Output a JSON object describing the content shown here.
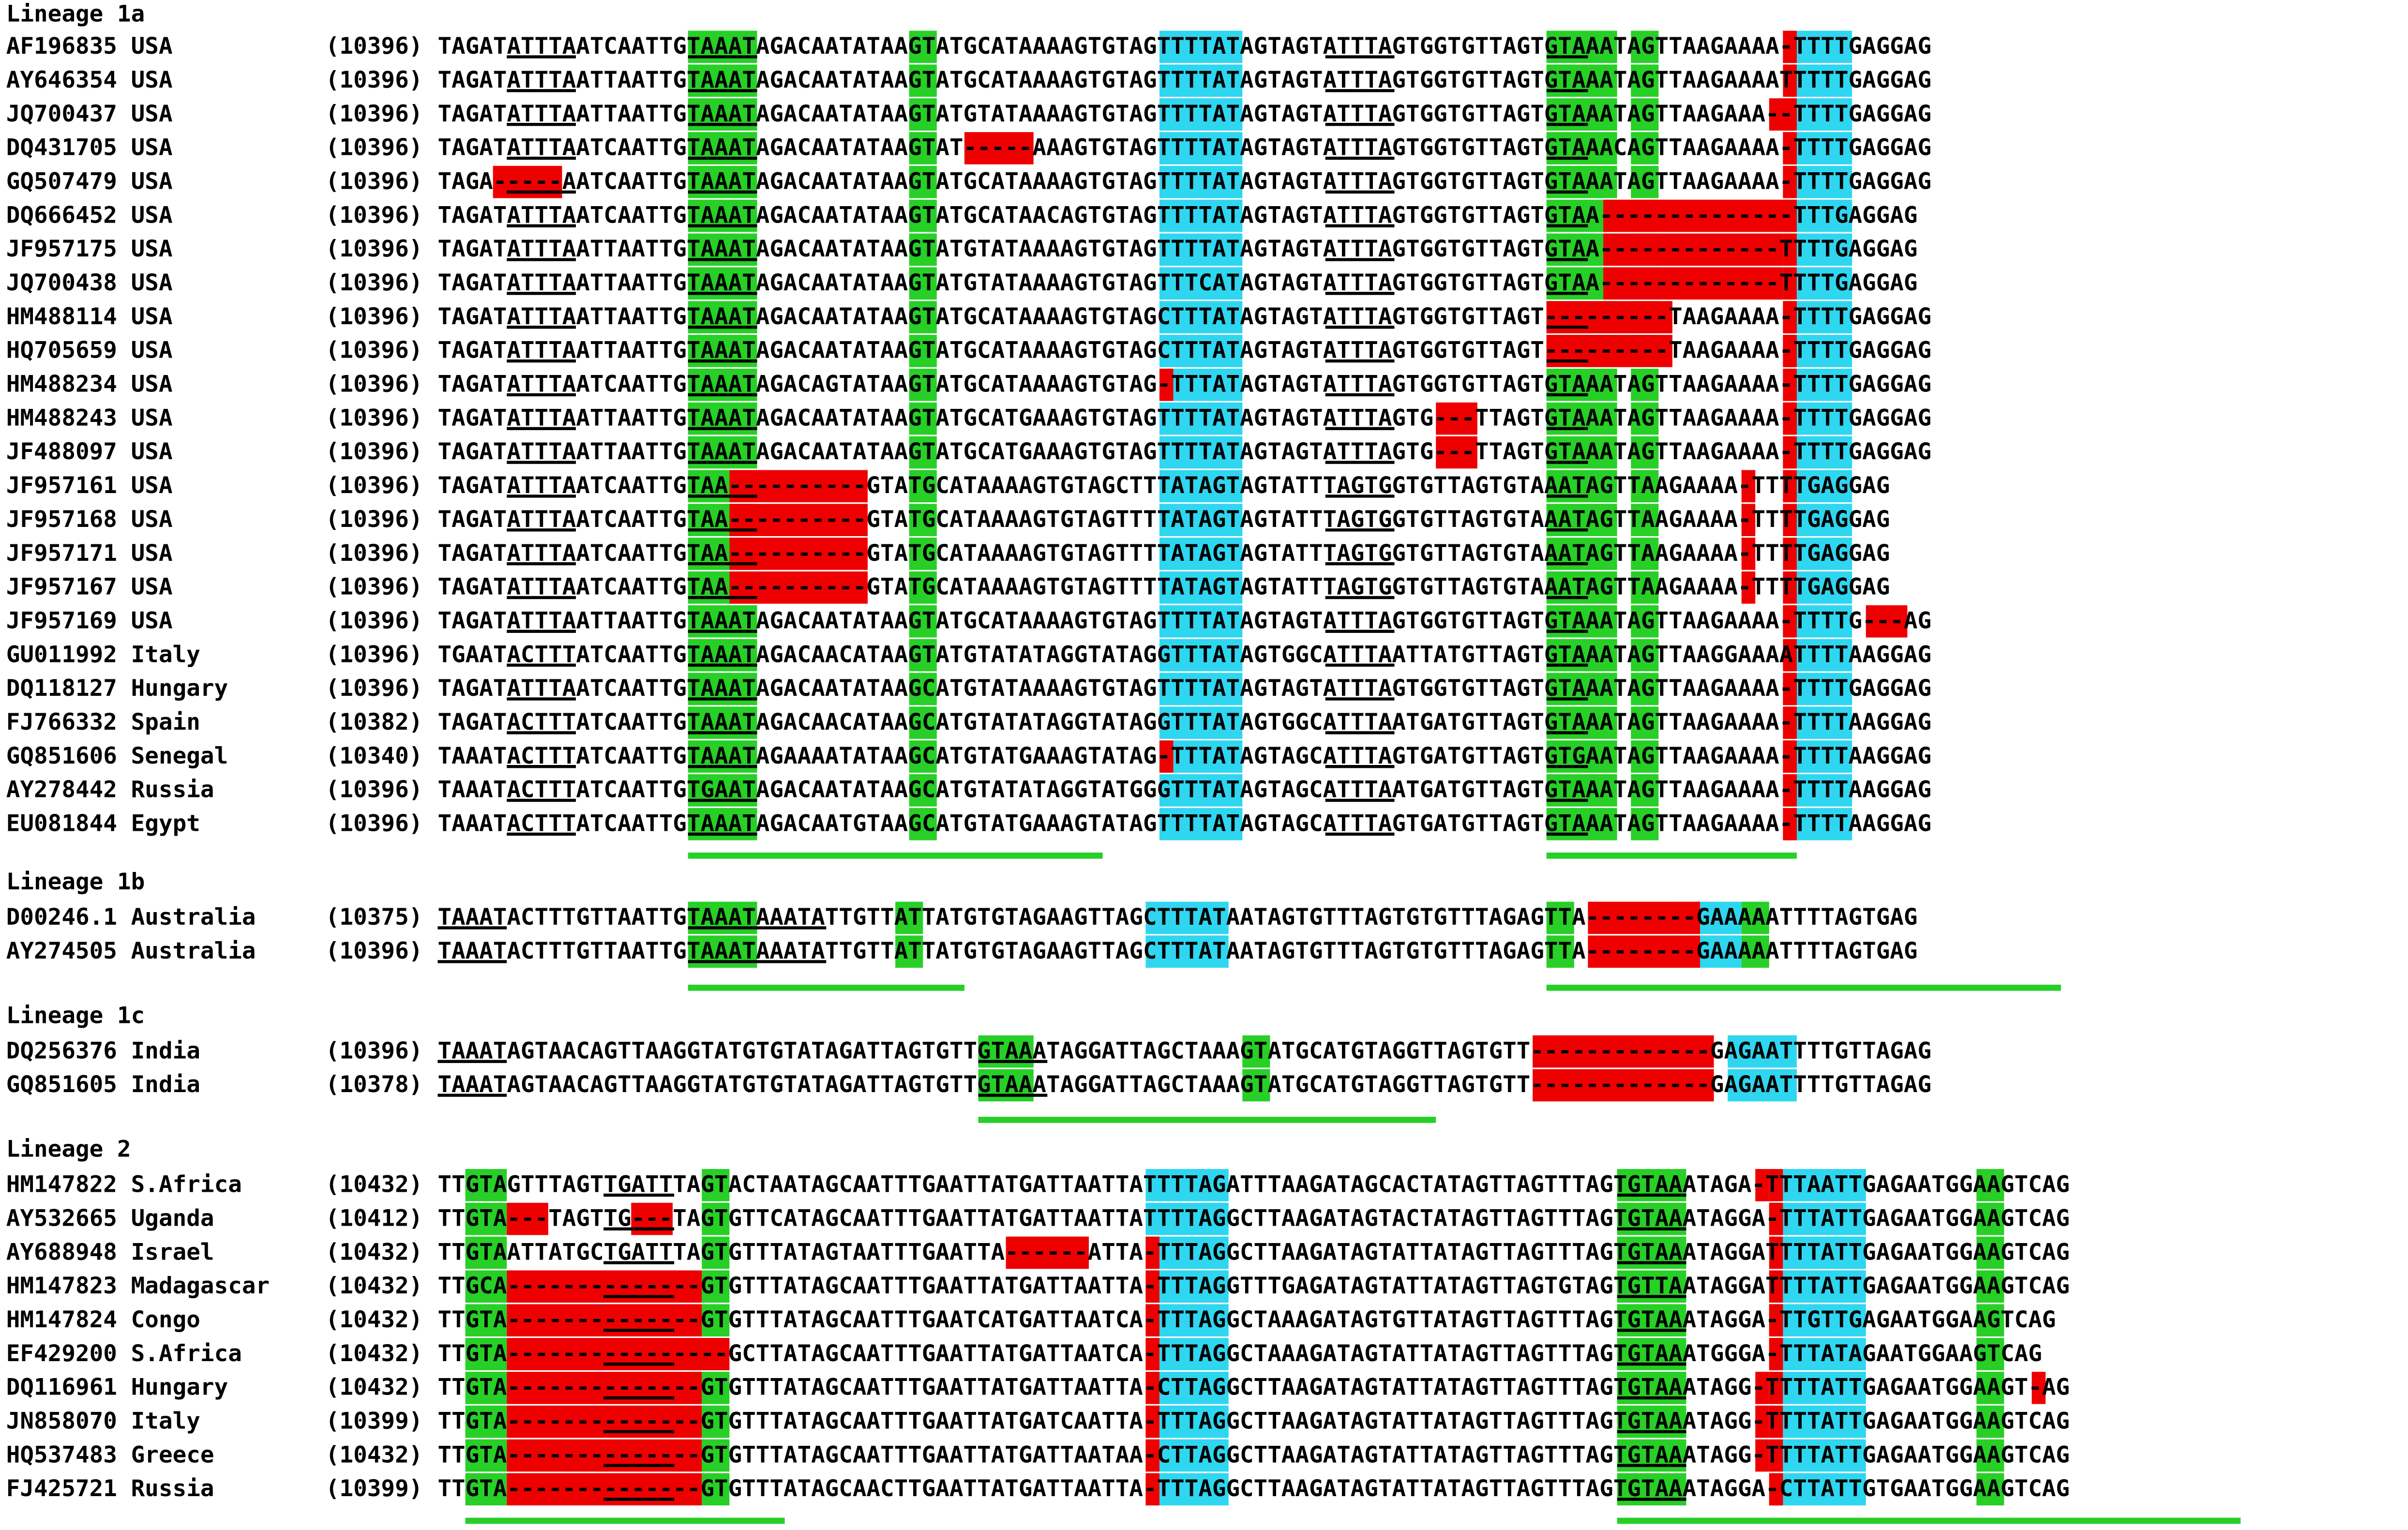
{
  "colors": {
    "conserved_motif": "#27cf27",
    "tttta_motif": "#2fd6f0",
    "deletion": "#ee0000",
    "insertion": "#f6ee12"
  },
  "lineages": [
    {
      "title": "Lineage 1a",
      "sequences": [
        {
          "id": "AF196835 USA",
          "pos": "(10396)",
          "seq": "TAGATATTTAATCAATTGTAAATAGACAATATAAGTATGCATAAAAGTGTAGTTTTATAGTAGTATTTAGTGGTGTTAGTGTAAATAGTTAAGAAAA-TTTTGAGGAG"
        },
        {
          "id": "AY646354 USA",
          "pos": "(10396)",
          "seq": "TAGATATTTAATTAATTGTAAATAGACAATATAAGTATGCATAAAAGTGTAGTTTTATAGTAGTATTTAGTGGTGTTAGTGTAAATAGTTAAGAAAATTTTTGAGGAG"
        },
        {
          "id": "JQ700437 USA",
          "pos": "(10396)",
          "seq": "TAGATATTTAATTAATTGTAAATAGACAATATAAGTATGTATAAAAGTGTAGTTTTATAGTAGTATTTAGTGGTGTTAGTGTAAATAGTTAAGAAA--TTTTGAGGAG"
        },
        {
          "id": "DQ431705 USA",
          "pos": "(10396)",
          "seq": "TAGATATTTAATCAATTGTAAATAGACAATATAAGTAT-----AAAGTGTAGTTTTATAGTAGTATTTAGTGGTGTTAGTGTAAACAGTTAAGAAAA-TTTTGAGGAG"
        },
        {
          "id": "GQ507479 USA",
          "pos": "(10396)",
          "seq": "TAGA-----AATCAATTGTAAATAGACAATATAAGTATGCATAAAAGTGTAGTTTTATAGTAGTATTTAGTGGTGTTAGTGTAAATAGTTAAGAAAA-TTTTGAGGAG"
        },
        {
          "id": "DQ666452 USA",
          "pos": "(10396)",
          "seq": "TAGATATTTAATCAATTGTAAATAGACAATATAAGTATGCATAACAGTGTAGTTTTATAGTAGTATTTAGTGGTGTTAGTGTAA--------------TTTGAGGAG"
        },
        {
          "id": "JF957175 USA",
          "pos": "(10396)",
          "seq": "TAGATATTTAATTAATTGTAAATAGACAATATAAGTATGTATAAAAGTGTAGTTTTATAGTAGTATTTAGTGGTGTTAGTGTAA-------------TTTTGAGGAG"
        },
        {
          "id": "JQ700438 USA",
          "pos": "(10396)",
          "seq": "TAGATATTTAATTAATTGTAAATAGACAATATAAGTATGTATAAAAGTGTAGTTTCATAGTAGTATTTAGTGGTGTTAGTGTAA-------------TTTTGAGGAG"
        },
        {
          "id": "HM488114 USA",
          "pos": "(10396)",
          "seq": "TAGATATTTAATTAATTGTAAATAGACAATATAAGTATGCATAAAAGTGTAGCTTTATAGTAGTATTTAGTGGTGTTAGT---------TAAGAAAA-TTTTGAGGAG"
        },
        {
          "id": "HQ705659 USA",
          "pos": "(10396)",
          "seq": "TAGATATTTAATTAATTGTAAATAGACAATATAAGTATGCATAAAAGTGTAGCTTTATAGTAGTATTTAGTGGTGTTAGT---------TAAGAAAA-TTTTGAGGAG"
        },
        {
          "id": "HM488234 USA",
          "pos": "(10396)",
          "seq": "TAGATATTTAATCAATTGTAAATAGACAGTATAAGTATGCATAAAAGTGTAG-TTTATAGTAGTATTTAGTGGTGTTAGTGTAAATAGTTAAGAAAA-TTTTGAGGAG"
        },
        {
          "id": "HM488243 USA",
          "pos": "(10396)",
          "seq": "TAGATATTTAATTAATTGTAAATAGACAATATAAGTATGCATGAAAGTGTAGTTTTATAGTAGTATTTAGTG---TTAGTGTAAATAGTTAAGAAAA-TTTTGAGGAG"
        },
        {
          "id": "JF488097 USA",
          "pos": "(10396)",
          "seq": "TAGATATTTAATTAATTGTAAATAGACAATATAAGTATGCATGAAAGTGTAGTTTTATAGTAGTATTTAGTG---TTAGTGTAAATAGTTAAGAAAA-TTTTGAGGAG"
        },
        {
          "id": "JF957161 USA",
          "pos": "(10396)",
          "seq": "TAGATATTTAATCAATTGTAA----------GTATGCATAAAAGTGTAGCTTTATAGTAGTATTTAGTGGTGTTAGTGTAAATAGTTAAGAAAA-TTTTGAGGAG"
        },
        {
          "id": "JF957168 USA",
          "pos": "(10396)",
          "seq": "TAGATATTTAATCAATTGTAA----------GTATGCATAAAAGTGTAGTTTTATAGTAGTATTTAGTGGTGTTAGTGTAAATAGTTAAGAAAA-TTTTGAGGAG"
        },
        {
          "id": "JF957171 USA",
          "pos": "(10396)",
          "seq": "TAGATATTTAATCAATTGTAA----------GTATGCATAAAAGTGTAGTTTTATAGTAGTATTTAGTGGTGTTAGTGTAAATAGTTAAGAAAA-TTTTGAGGAG"
        },
        {
          "id": "JF957167 USA",
          "pos": "(10396)",
          "seq": "TAGATATTTAATCAATTGTAA----------GTATGCATAAAAGTGTAGTTTTATAGTAGTATTTAGTGGTGTTAGTGTAAATAGTTAAGAAAA-TTTTGAGGAG"
        },
        {
          "id": "JF957169 USA",
          "pos": "(10396)",
          "seq": "TAGATATTTAATTAATTGTAAATAGACAATATAAGTATGCATAAAAGTGTAGTTTTATAGTAGTATTTAGTGGTGTTAGTGTAAATAGTTAAGAAAA-TTTTG---AG"
        },
        {
          "id": "GU011992 Italy",
          "pos": "(10396)",
          "seq": "TGAATACTTTATCAATTGTAAATAGACAACATAAGTATGTATATAGGTATAGGTTTATAGTGGCATTTAATTATGTTAGTGTAAATAGTTAAGGAAAATTTTAAGGAG"
        },
        {
          "id": "DQ118127 Hungary",
          "pos": "(10396)",
          "seq": "TAGATATTTAATCAATTGTAAATAGACAATATAAGCATGTATAAAAGTGTAGTTTTATAGTAGTATTTAGTGGTGTTAGTGTAAATAGTTAAGAAAA-TTTTGAGGAG"
        },
        {
          "id": "FJ766332 Spain",
          "pos": "(10382)",
          "seq": "TAGATACTTTATCAATTGTAAATAGACAACATAAGCATGTATATAGGTATAGGTTTATAGTGGCATTTAATGATGTTAGTGTAAATAGTTAAGAAAA-TTTTAAGGAG"
        },
        {
          "id": "GQ851606 Senegal",
          "pos": "(10340)",
          "seq": "TAAATACTTTATCAATTGTAAATAGAAAATATAAGCATGTATGAAAGTATAG-TTTATAGTAGCATTTAGTGATGTTAGTGTGAATAGTTAAGAAAA-TTTTAAGGAG"
        },
        {
          "id": "AY278442 Russia",
          "pos": "(10396)",
          "seq": "TAAATACTTTATCAATTGTGAATAGACAATATAAGCATGTATATAGGTATGGGTTTATAGTAGCATTTAATGATGTTAGTGTAAATAGTTAAGAAAA-TTTTAAGGAG"
        },
        {
          "id": "EU081844 Egypt",
          "pos": "(10396)",
          "seq": "TAAATACTTTATCAATTGTAAATAGACAATGTAAGCATGTATGAAAGTATAGTTTTATAGTAGCATTTAGTGATGTTAGTGTAAATAGTTAAGAAAA-TTTTAAGGAG"
        }
      ]
    },
    {
      "title": "Lineage 1b",
      "sequences": [
        {
          "id": "D00246.1 Australia",
          "pos": "(10375)",
          "seq": "TAAATACTTTGTTAATTGTAAATAAATATTGTTATTATGTGTAGAAGTTAGCTTTATAATAGTGTTTAGTGTGTTTAGAGTTA--------GAAAAATTTTAGTGAG"
        },
        {
          "id": "AY274505 Australia",
          "pos": "(10396)",
          "seq": "TAAATACTTTGTTAATTGTAAATAAATATTGTTATTATGTGTAGAAGTTAGCTTTATAATAGTGTTTAGTGTGTTTAGAGTTA--------GAAAAATTTTAGTGAG"
        }
      ]
    },
    {
      "title": "Lineage 1c",
      "sequences": [
        {
          "id": "DQ256376 India",
          "pos": "(10396)",
          "seq": "TAAATAGTAACAGTTAAGGTATGTGTATAGATTAGTGTTGTAAATAGGATTAGCTAAAGTATGCATGTAGGTTAGTGTT-------------GAGAATTTTGTTAGAG"
        },
        {
          "id": "GQ851605 India",
          "pos": "(10378)",
          "seq": "TAAATAGTAACAGTTAAGGTATGTGTATAGATTAGTGTTGTAAATAGGATTAGCTAAAGTATGCATGTAGGTTAGTGTT-------------GAGAATTTTGTTAGAG"
        }
      ]
    },
    {
      "title": "Lineage 2",
      "sequences": [
        {
          "id": "HM147822 S.Africa",
          "pos": "(10432)",
          "seq": "TTGTAGTTTAGTTGATTTAGTACTAATAGCAATTTGAATTATGATTAATTATTTTAGATTTAAGATAGCACTATAGTTAGTTTAGTGTAAATAGA-TTTAATTGAGAATGGAAGTCAG"
        },
        {
          "id": "AY532665 Uganda",
          "pos": "(10412)",
          "seq": "TTGTA---TAGTTG---TAGTGTTCATAGCAATTTGAATTATGATTAATTATTTTAGGCTTAAGATAGTACTATAGTTAGTTTAGTGTAAATAGGA-TTTATTGAGAATGGAAGTCAG"
        },
        {
          "id": "AY688948 Israel",
          "pos": "(10432)",
          "seq": "TTGTAATTATGCTGATTTAGTGTTTATAGTAATTTGAATTA------ATTA-TTTAGGCTTAAGATAGTATTATAGTTAGTTTAGTGTAAATAGGATTTTATTGAGAATGGAAGTCAG"
        },
        {
          "id": "HM147823 Madagascar",
          "pos": "(10432)",
          "seq": "TTGCA--------------GTGTTTATAGCAATTTGAATTATGATTAATTA-TTTAGGTTTGAGATAGTATTATAGTTAGTGTAGTGTTAATAGGATTTTATTGAGAATGGAAGTCAG"
        },
        {
          "id": "HM147824 Congo",
          "pos": "(10432)",
          "seq": "TTGTA--------------GTGTTTATAGCAATTTGAATCATGATTAATCA-TTTAGGCTAAAGATAGTGTTATAGTTAGTTTAGTGTAAATAGGA-TTGTTGAGAATGGAAGTCAG"
        },
        {
          "id": "EF429200 S.Africa",
          "pos": "(10432)",
          "seq": "TTGTA----------------GCTTATAGCAATTTGAATTATGATTAATCA-TTTAGGCTAAAGATAGTATTATAGTTAGTTTAGTGTAAATGGGA-TTTATAGAATGGAAGTCAG"
        },
        {
          "id": "DQ116961 Hungary",
          "pos": "(10432)",
          "seq": "TTGTA--------------GTGTTTATAGCAATTTGAATTATGATTAATTA-CTTAGGCTTAAGATAGTATTATAGTTAGTTTAGTGTAAATAGG-TTTTATTGAGAATGGAAGT-AG"
        },
        {
          "id": "JN858070 Italy",
          "pos": "(10399)",
          "seq": "TTGTA--------------GTGTTTATAGCAATTTGAATTATGATCAATTA-TTTAGGCTTAAGATAGTATTATAGTTAGTTTAGTGTAAATAGG-TTTTATTGAGAATGGAAGTCAG"
        },
        {
          "id": "HQ537483 Greece",
          "pos": "(10432)",
          "seq": "TTGTA--------------GTGTTTATAGCAATTTGAATTATGATTAATAA-CTTAGGCTTAAGATAGTATTATAGTTAGTTTAGTGTAAATAGG-TTTTATTGAGAATGGAAGTCAG"
        },
        {
          "id": "FJ425721 Russia",
          "pos": "(10399)",
          "seq": "TTGTA--------------GTGTTTATAGCAACTTGAATTATGATTAATTA-TTTAGGCTTAAGATAGTATTATAGTTAGTTTAGTGTAAATAGGA-CTTATTGTGAATGGAAGTCAG"
        }
      ]
    }
  ]
}
